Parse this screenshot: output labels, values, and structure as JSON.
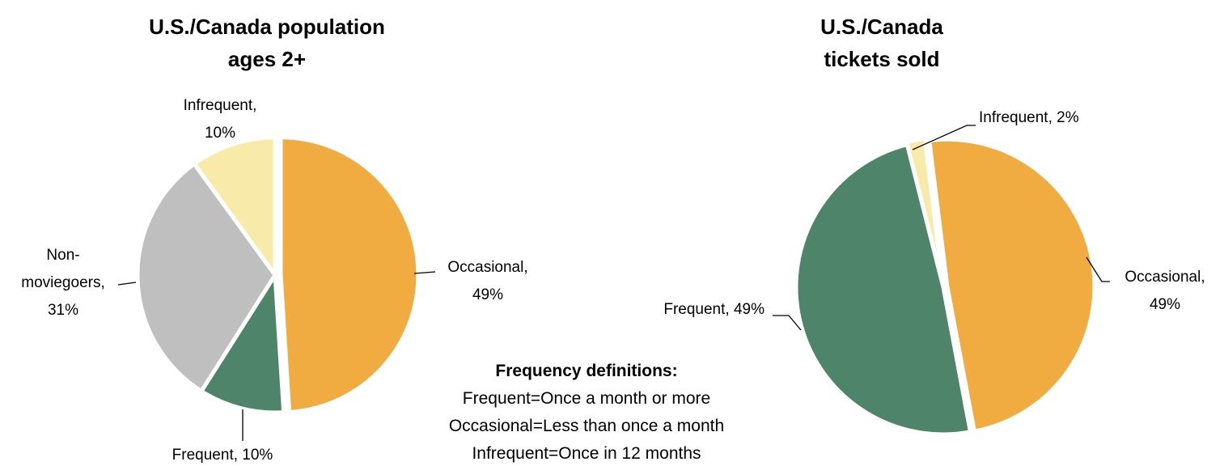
{
  "chart_data": [
    {
      "type": "pie",
      "title": "U.S./Canada population\nages 2+",
      "values": [
        49,
        10,
        31,
        10
      ],
      "value_labels": [
        "Occasional,\n49%",
        "Frequent, 10%",
        "Non-\nmoviegoers,\n31%",
        "Infrequent,\n10%"
      ],
      "colors": [
        "#F0AB41",
        "#4E846A",
        "#BFBFBF",
        "#F8EBAA"
      ]
    },
    {
      "type": "pie",
      "title": "U.S./Canada\ntickets sold",
      "values": [
        49,
        49,
        2
      ],
      "value_labels": [
        "Occasional,\n49%",
        "Frequent, 49%",
        "Infrequent, 2%"
      ],
      "colors": [
        "#F0AB41",
        "#4E846A",
        "#F8EBAA"
      ]
    }
  ],
  "definitions": {
    "title": "Frequency definitions:",
    "lines": [
      "Frequent=Once a month or more",
      "Occasional=Less than once a month",
      "Infrequent=Once in 12 months"
    ]
  }
}
